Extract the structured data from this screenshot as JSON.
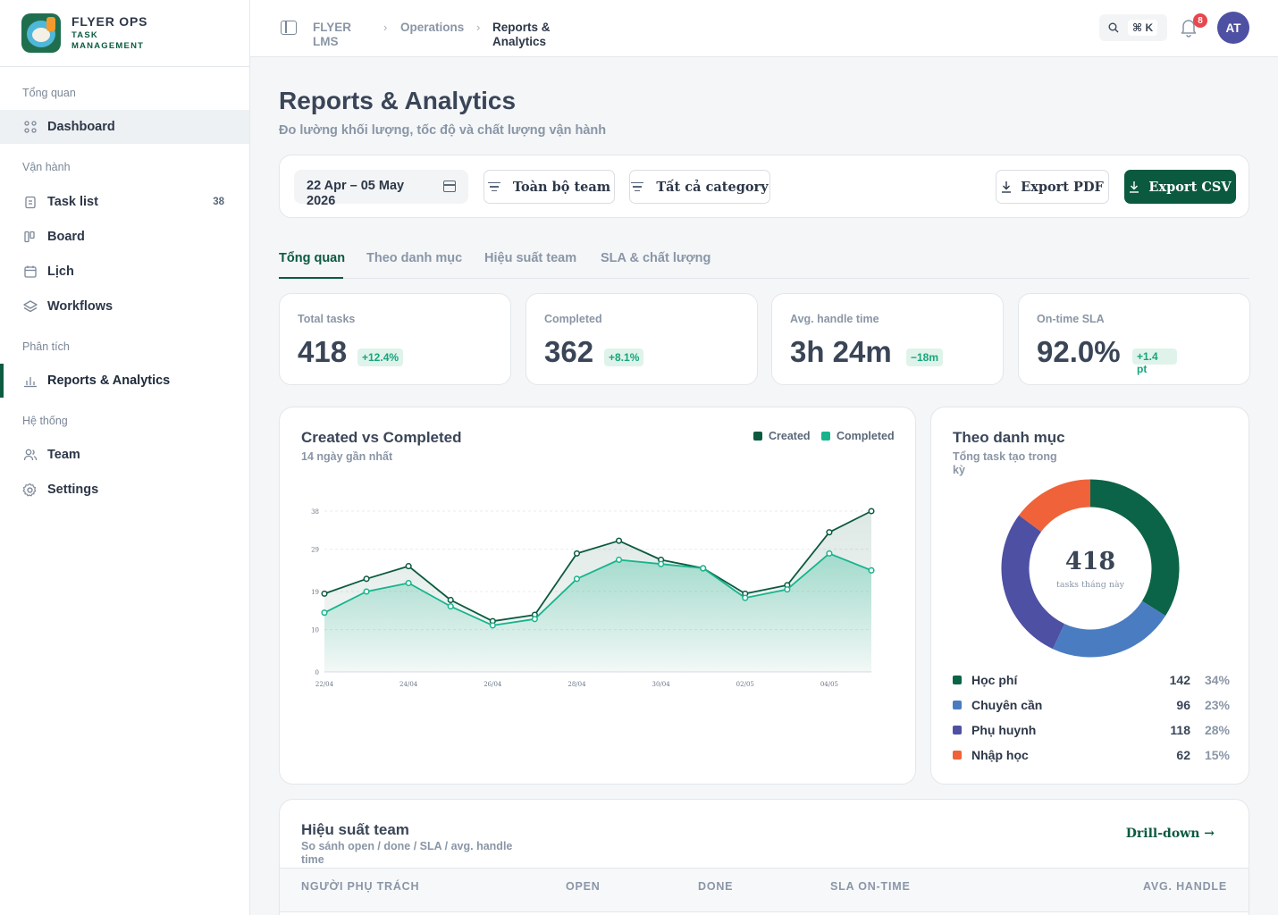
{
  "brand": {
    "title": "FLYER OPS",
    "sub1": "TASK",
    "sub2": "MANAGEMENT"
  },
  "sidebar": {
    "sections": [
      "Tổng quan",
      "Vận hành",
      "Phân tích",
      "Hệ thống"
    ],
    "items": [
      {
        "label": "Dashboard",
        "icon": "grid-icon"
      },
      {
        "label": "Task list",
        "icon": "clipboard-icon",
        "badge": "38"
      },
      {
        "label": "Board",
        "icon": "kanban-icon"
      },
      {
        "label": "Lịch",
        "icon": "calendar-icon"
      },
      {
        "label": "Workflows",
        "icon": "layers-icon"
      },
      {
        "label": "Reports & Analytics",
        "icon": "bar-chart-icon"
      },
      {
        "label": "Team",
        "icon": "users-icon"
      },
      {
        "label": "Settings",
        "icon": "gear-icon"
      }
    ]
  },
  "topbar": {
    "crumbs": [
      "FLYER",
      "LMS",
      "Operations",
      "Reports &",
      "Analytics"
    ],
    "kbd": "⌘ K",
    "notif_count": "8",
    "avatar": "AT"
  },
  "header": {
    "title": "Reports & Analytics",
    "subtitle": "Đo lường khối lượng, tốc độ và chất lượng vận hành"
  },
  "filters": {
    "date_line1": "22 Apr – 05 May",
    "date_line2": "2026",
    "team": "Toàn bộ team",
    "category": "Tất cả category",
    "export_pdf": "Export PDF",
    "export_csv": "Export CSV"
  },
  "tabs": [
    "Tổng quan",
    "Theo danh mục",
    "Hiệu suất team",
    "SLA & chất lượng"
  ],
  "kpis": [
    {
      "label": "Total tasks",
      "value": "418",
      "delta": "+12.4%"
    },
    {
      "label": "Completed",
      "value": "362",
      "delta": "+8.1%"
    },
    {
      "label": "Avg. handle time",
      "value": "3h 24m",
      "delta": "−18m"
    },
    {
      "label": "On-time SLA",
      "value": "92.0%",
      "delta1": "+1.4",
      "delta2": "pt"
    }
  ],
  "trend_card": {
    "title": "Created vs Completed",
    "subtitle": "14 ngày gần nhất",
    "legend_created": "Created",
    "legend_completed": "Completed"
  },
  "colors": {
    "created": "#0b5a40",
    "completed": "#17b48c",
    "hoc_phi": "#0b6447",
    "chuyen_can": "#4a7cc1",
    "phu_huynh": "#4e50a3",
    "nhap_hoc": "#f0623a"
  },
  "chart_data": [
    {
      "type": "area",
      "title": "Created vs Completed",
      "x": [
        "22/04",
        "23/04",
        "24/04",
        "25/04",
        "26/04",
        "27/04",
        "28/04",
        "29/04",
        "30/04",
        "01/05",
        "02/05",
        "03/05",
        "04/05",
        "05/05"
      ],
      "x_tick_labels": [
        "22/04",
        "24/04",
        "26/04",
        "28/04",
        "30/04",
        "02/05",
        "04/05"
      ],
      "y_ticks": [
        0,
        10,
        19,
        29,
        38
      ],
      "ylim": [
        0,
        38
      ],
      "series": [
        {
          "name": "Created",
          "values": [
            18.5,
            22,
            25,
            17,
            12,
            13.5,
            28,
            31,
            26.5,
            24.5,
            18.5,
            20.5,
            33,
            38
          ]
        },
        {
          "name": "Completed",
          "values": [
            14,
            19,
            21,
            15.5,
            11,
            12.5,
            22,
            26.5,
            25.5,
            24.5,
            17.5,
            19.5,
            28,
            24
          ]
        }
      ],
      "grid": true,
      "legend": "top-right"
    },
    {
      "type": "pie",
      "title": "Theo danh mục",
      "subtitle1": "Tổng task tạo trong",
      "subtitle2": "kỳ",
      "center_value": "418",
      "center_label": "tasks tháng này",
      "slices": [
        {
          "label": "Học phí",
          "count": "142",
          "pct": "34%",
          "value": 142
        },
        {
          "label": "Chuyên cần",
          "count": "96",
          "pct": "23%",
          "value": 96
        },
        {
          "label": "Phụ huynh",
          "count": "118",
          "pct": "28%",
          "value": 118
        },
        {
          "label": "Nhập học",
          "count": "62",
          "pct": "15%",
          "value": 62
        }
      ]
    }
  ],
  "team_card": {
    "title": "Hiệu suất team",
    "subtitle1": "So sánh open / done / SLA / avg. handle",
    "subtitle2": "time",
    "drill": "Drill-down →",
    "columns": [
      "NGƯỜI PHỤ TRÁCH",
      "OPEN",
      "DONE",
      "SLA ON-TIME",
      "AVG. HANDLE"
    ]
  }
}
